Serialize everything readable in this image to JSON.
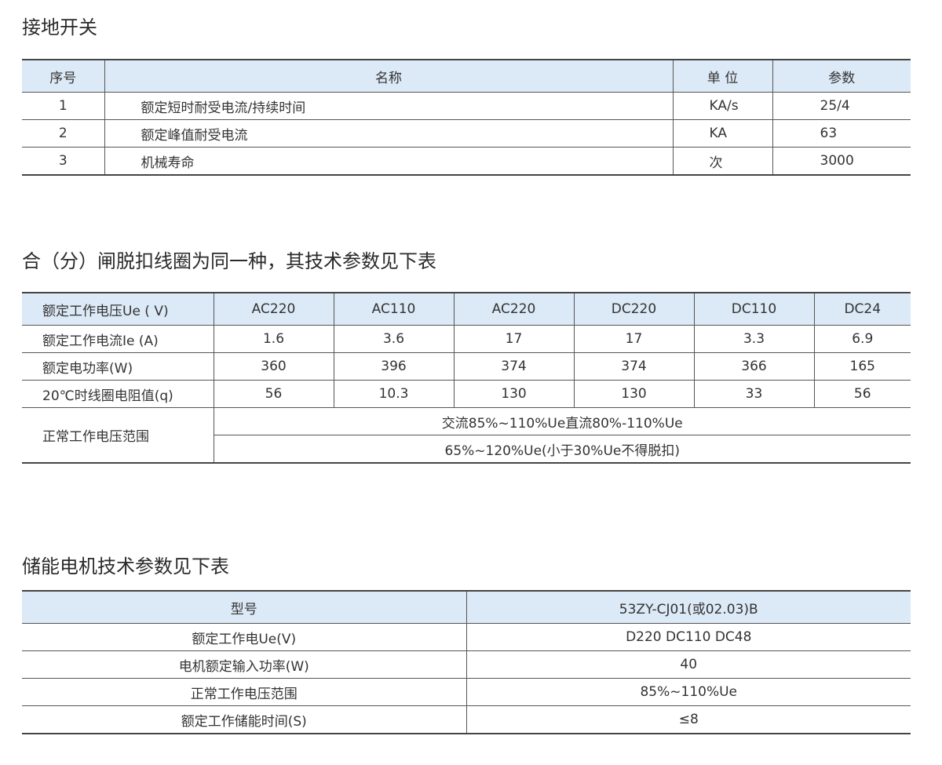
{
  "section1": {
    "title": "接地开关",
    "headers": [
      "序号",
      "名称",
      "单 位",
      "参数"
    ],
    "rows": [
      [
        "1",
        "额定短时耐受电流/持续时间",
        "KA/s",
        "25/4"
      ],
      [
        "2",
        "额定峰值耐受电流",
        "KA",
        "63"
      ],
      [
        "3",
        "机械寿命",
        "次",
        "3000"
      ]
    ]
  },
  "section2": {
    "title": "合（分）闸脱扣线圈为同一种，其技术参数见下表",
    "headers": [
      "额定工作电压Ue ( V)",
      "AC220",
      "AC110",
      "AC220",
      "DC220",
      "DC110",
      "DC24"
    ],
    "rows": [
      [
        "额定工作电流Ie (A)",
        "1.6",
        "3.6",
        "17",
        "17",
        "3.3",
        "6.9"
      ],
      [
        "额定电功率(W)",
        "360",
        "396",
        "374",
        "374",
        "366",
        "165"
      ],
      [
        "20℃时线圈电阻值(q)",
        "56",
        "10.3",
        "130",
        "130",
        "33",
        "56"
      ]
    ],
    "range_label": "正常工作电压范围",
    "range_values": [
      "交流85%~110%Ue直流80%-110%Ue",
      "65%~120%Ue(小于30%Ue不得脱扣)"
    ]
  },
  "section3": {
    "title": "储能电机技术参数见下表",
    "headers": [
      "型号",
      "53ZY-CJ01(或02.03)B"
    ],
    "rows": [
      [
        "额定工作电Ue(V)",
        "D220 DC110 DC48"
      ],
      [
        "电机额定输入功率(W)",
        "40"
      ],
      [
        "正常工作电压范围",
        "85%~110%Ue"
      ],
      [
        "额定工作储能时间(S)",
        "≤8"
      ]
    ]
  },
  "colors": {
    "header_bg": "#dce9f6",
    "rule": "#444444"
  }
}
